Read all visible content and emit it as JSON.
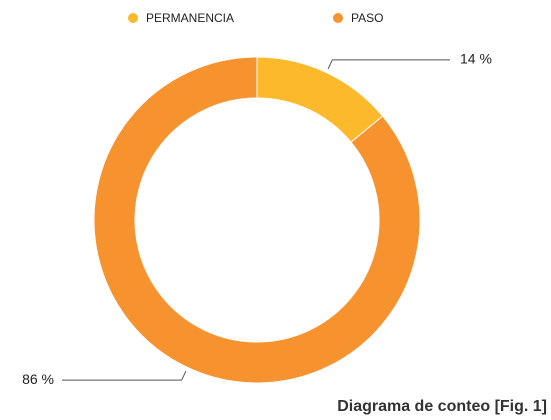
{
  "chart_data": {
    "type": "donut",
    "categories": [
      "PERMANENCIA",
      "PASO"
    ],
    "values": [
      14,
      86
    ],
    "value_labels": [
      "14 %",
      "86 %"
    ],
    "colors": [
      "#fbb92b",
      "#f7932f"
    ],
    "caption": "Diagrama de conteo [Fig. 1]"
  }
}
